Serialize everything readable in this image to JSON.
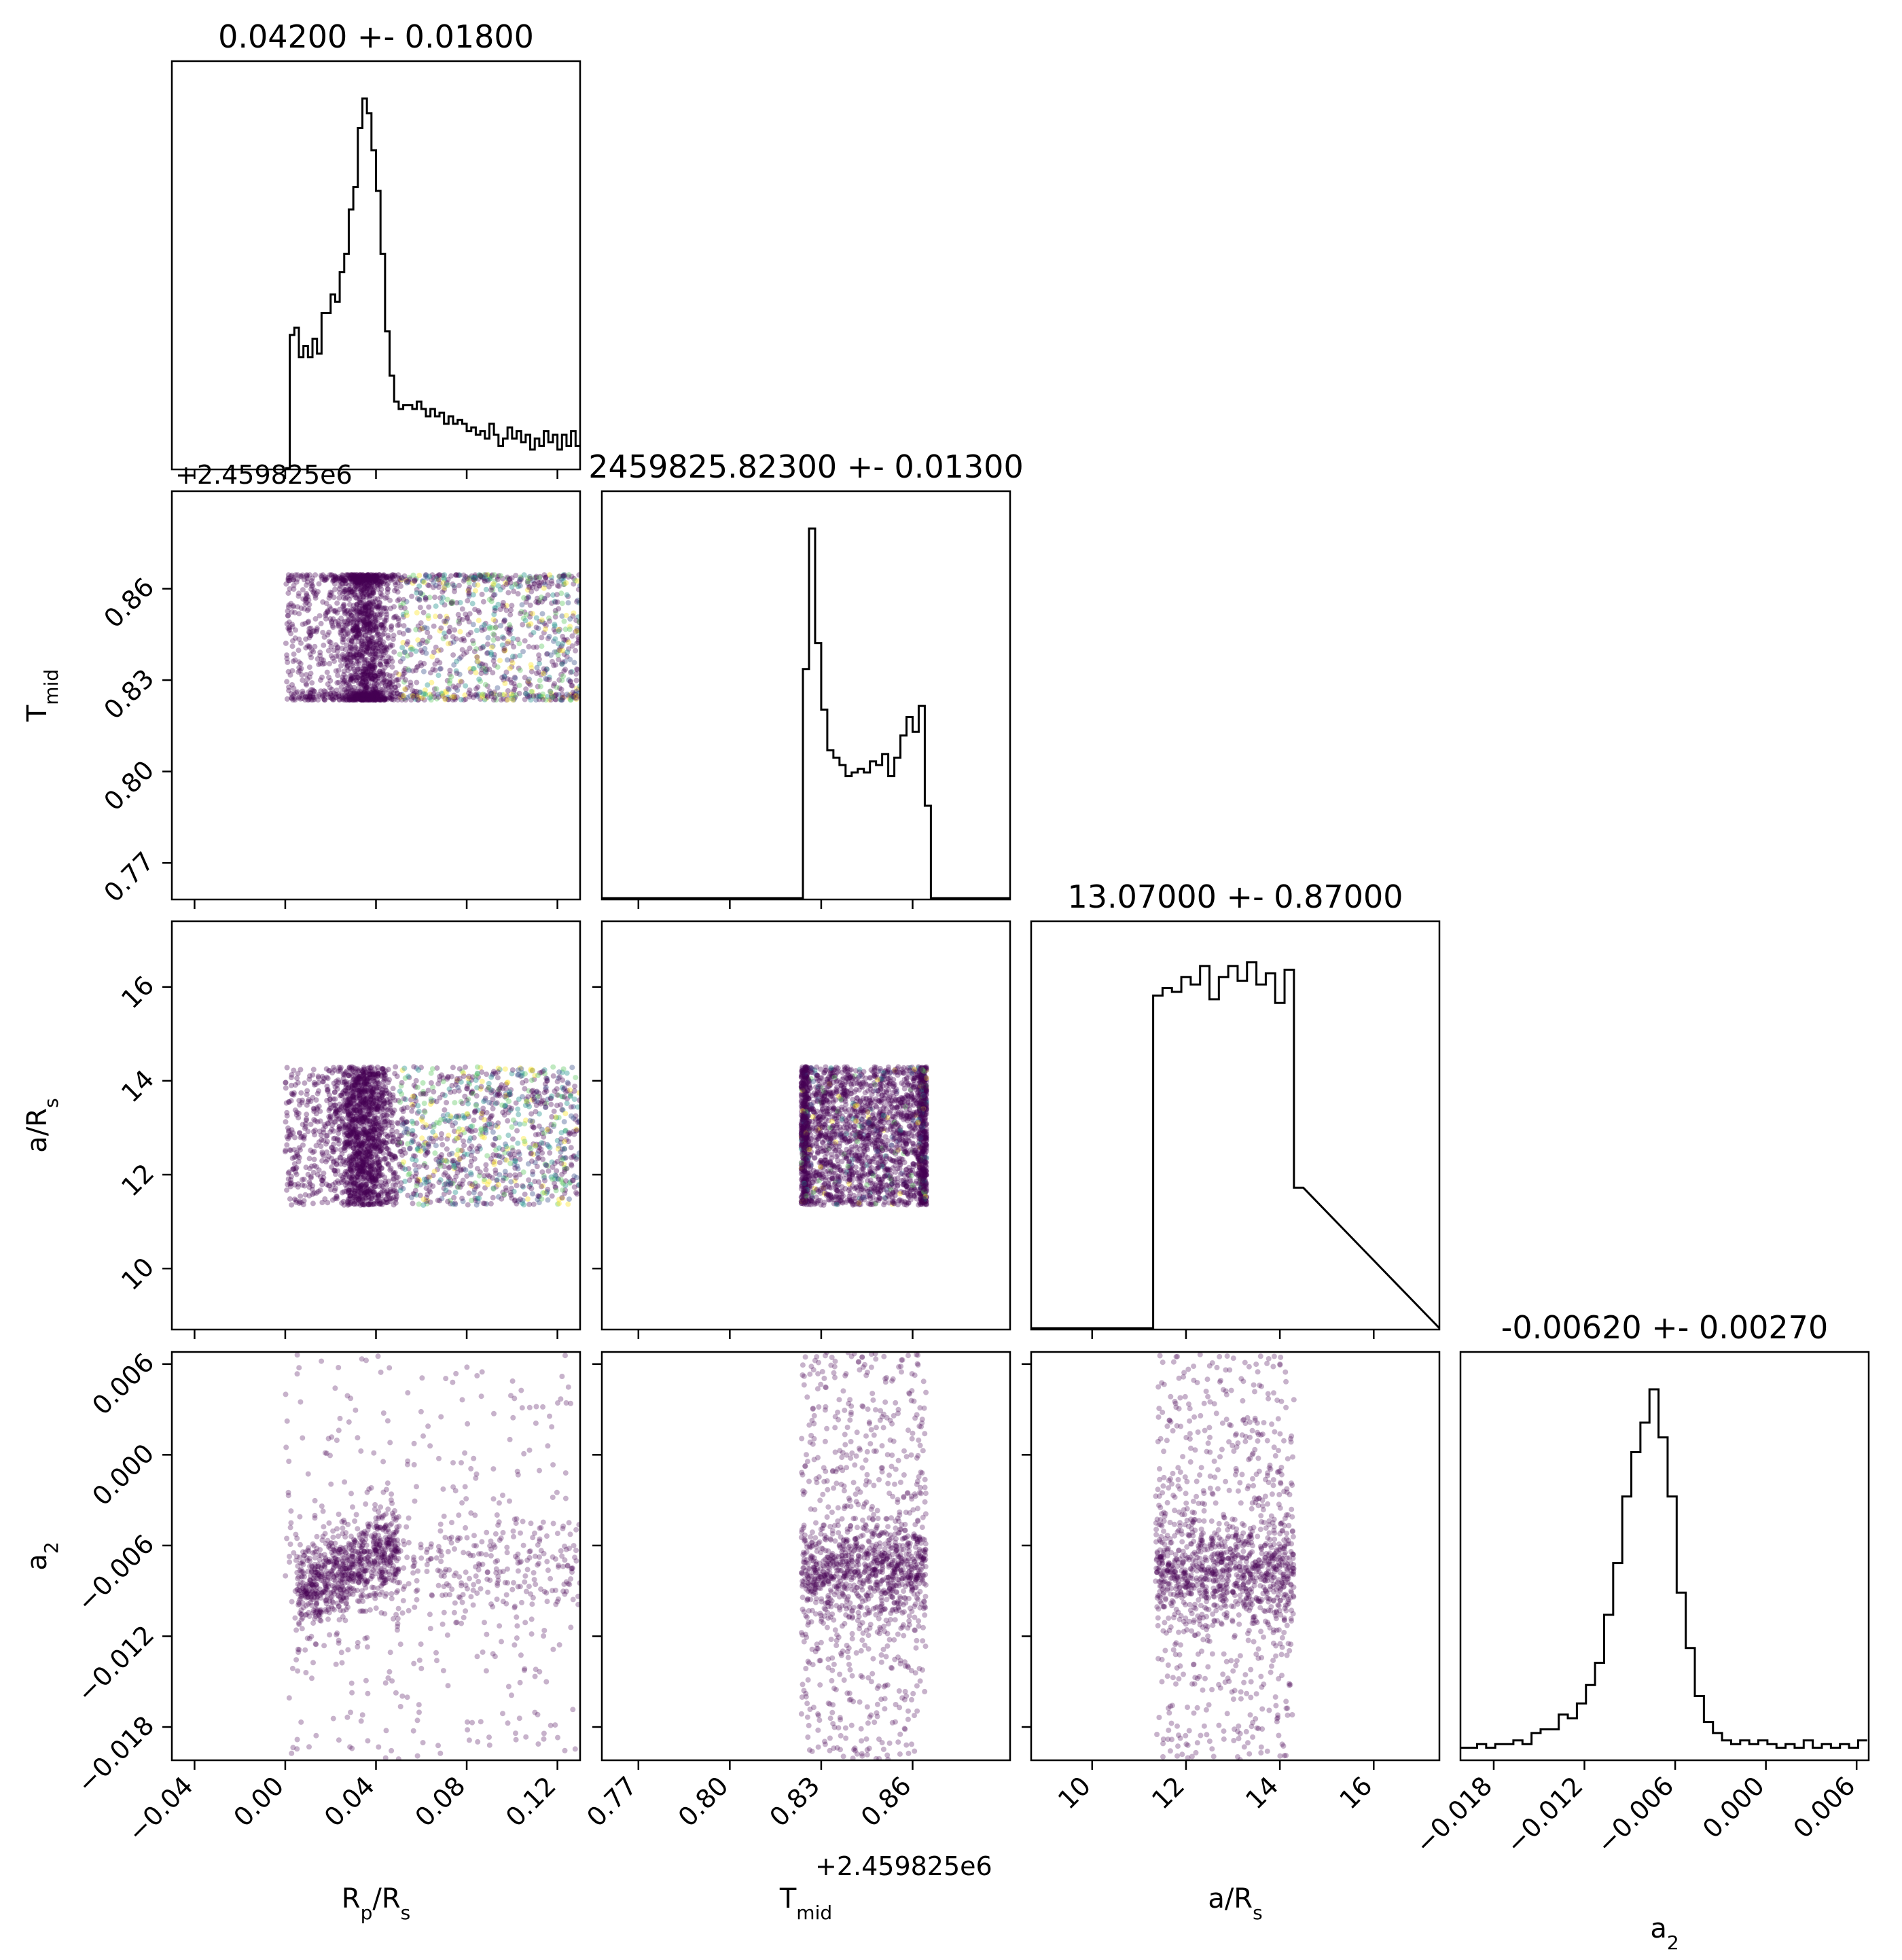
{
  "chart_data": {
    "type": "corner",
    "params": [
      {
        "key": "rp",
        "label": "R",
        "label_sub": "p",
        "label_tail": "/R",
        "label_tail_sub": "s",
        "title": "0.04200 +- 0.01800",
        "range": [
          -0.05,
          0.13
        ],
        "ticks": [
          -0.04,
          0.0,
          0.04,
          0.08,
          0.12
        ],
        "tick_labels": [
          "−0.04",
          "0.00",
          "0.04",
          "0.08",
          "0.12"
        ]
      },
      {
        "key": "tmid",
        "label": "T",
        "label_sub": "mid",
        "label_tail": "",
        "label_tail_sub": "",
        "title": "2459825.82300 +- 0.01300",
        "range": [
          0.758,
          0.892
        ],
        "ticks": [
          0.77,
          0.8,
          0.83,
          0.86
        ],
        "tick_labels": [
          "0.77",
          "0.80",
          "0.83",
          "0.86"
        ],
        "offset_label": "+2.459825e6"
      },
      {
        "key": "ars",
        "label": "a/R",
        "label_sub": "s",
        "label_tail": "",
        "label_tail_sub": "",
        "title": "13.07000 +- 0.87000",
        "range": [
          8.7,
          17.4
        ],
        "ticks": [
          10,
          12,
          14,
          16
        ],
        "tick_labels": [
          "10",
          "12",
          "14",
          "16"
        ]
      },
      {
        "key": "a2",
        "label": "a",
        "label_sub": "2",
        "label_tail": "",
        "label_tail_sub": "",
        "title": "-0.00620 +- 0.00270",
        "range": [
          -0.0202,
          0.0068
        ],
        "ticks": [
          -0.018,
          -0.012,
          -0.006,
          0.0,
          0.006
        ],
        "tick_labels": [
          "−0.018",
          "−0.012",
          "−0.006",
          "0.000",
          "0.006"
        ]
      }
    ],
    "histograms": {
      "rp": {
        "bins": [
          [
            0.0,
            0.0
          ],
          [
            0.002,
            0.36
          ],
          [
            0.004,
            0.38
          ],
          [
            0.006,
            0.3
          ],
          [
            0.008,
            0.33
          ],
          [
            0.01,
            0.3
          ],
          [
            0.012,
            0.35
          ],
          [
            0.014,
            0.31
          ],
          [
            0.016,
            0.42
          ],
          [
            0.018,
            0.42
          ],
          [
            0.02,
            0.47
          ],
          [
            0.022,
            0.45
          ],
          [
            0.024,
            0.53
          ],
          [
            0.026,
            0.58
          ],
          [
            0.028,
            0.7
          ],
          [
            0.03,
            0.76
          ],
          [
            0.032,
            0.92
          ],
          [
            0.034,
            1.0
          ],
          [
            0.036,
            0.96
          ],
          [
            0.038,
            0.86
          ],
          [
            0.04,
            0.75
          ],
          [
            0.042,
            0.58
          ],
          [
            0.044,
            0.37
          ],
          [
            0.046,
            0.25
          ],
          [
            0.048,
            0.18
          ],
          [
            0.05,
            0.16
          ],
          [
            0.052,
            0.17
          ],
          [
            0.054,
            0.17
          ],
          [
            0.056,
            0.16
          ],
          [
            0.058,
            0.18
          ],
          [
            0.06,
            0.16
          ],
          [
            0.062,
            0.14
          ],
          [
            0.064,
            0.16
          ],
          [
            0.066,
            0.14
          ],
          [
            0.068,
            0.15
          ],
          [
            0.07,
            0.12
          ],
          [
            0.072,
            0.14
          ],
          [
            0.074,
            0.12
          ],
          [
            0.076,
            0.13
          ],
          [
            0.078,
            0.12
          ],
          [
            0.08,
            0.1
          ],
          [
            0.082,
            0.11
          ],
          [
            0.084,
            0.09
          ],
          [
            0.086,
            0.1
          ],
          [
            0.088,
            0.08
          ],
          [
            0.09,
            0.12
          ],
          [
            0.092,
            0.09
          ],
          [
            0.094,
            0.06
          ],
          [
            0.096,
            0.08
          ],
          [
            0.098,
            0.11
          ],
          [
            0.1,
            0.08
          ],
          [
            0.102,
            0.1
          ],
          [
            0.104,
            0.07
          ],
          [
            0.106,
            0.09
          ],
          [
            0.108,
            0.05
          ],
          [
            0.11,
            0.08
          ],
          [
            0.112,
            0.06
          ],
          [
            0.114,
            0.1
          ],
          [
            0.116,
            0.07
          ],
          [
            0.118,
            0.09
          ],
          [
            0.12,
            0.05
          ],
          [
            0.122,
            0.09
          ],
          [
            0.124,
            0.06
          ],
          [
            0.126,
            0.1
          ],
          [
            0.128,
            0.06
          ]
        ],
        "width": 0.002
      },
      "tmid": {
        "bins": [
          [
            0.822,
            0.0
          ],
          [
            0.824,
            0.62
          ],
          [
            0.826,
            1.0
          ],
          [
            0.828,
            0.69
          ],
          [
            0.83,
            0.51
          ],
          [
            0.832,
            0.4
          ],
          [
            0.834,
            0.38
          ],
          [
            0.836,
            0.36
          ],
          [
            0.838,
            0.33
          ],
          [
            0.84,
            0.34
          ],
          [
            0.842,
            0.35
          ],
          [
            0.844,
            0.34
          ],
          [
            0.846,
            0.37
          ],
          [
            0.848,
            0.36
          ],
          [
            0.85,
            0.39
          ],
          [
            0.852,
            0.33
          ],
          [
            0.854,
            0.38
          ],
          [
            0.856,
            0.44
          ],
          [
            0.858,
            0.49
          ],
          [
            0.86,
            0.45
          ],
          [
            0.862,
            0.52
          ],
          [
            0.864,
            0.25
          ],
          [
            0.866,
            0.0
          ]
        ],
        "width": 0.002,
        "start_bin": 0.8207
      },
      "ars": {
        "bins": [
          [
            11.3,
            0.9
          ],
          [
            11.5,
            0.92
          ],
          [
            11.7,
            0.91
          ],
          [
            11.9,
            0.95
          ],
          [
            12.1,
            0.93
          ],
          [
            12.3,
            0.98
          ],
          [
            12.5,
            0.89
          ],
          [
            12.7,
            0.95
          ],
          [
            12.9,
            0.98
          ],
          [
            13.1,
            0.94
          ],
          [
            13.3,
            0.99
          ],
          [
            13.5,
            0.93
          ],
          [
            13.7,
            0.96
          ],
          [
            13.9,
            0.88
          ],
          [
            14.1,
            0.97
          ],
          [
            14.3,
            0.38
          ]
        ],
        "width": 0.2
      },
      "a2": {
        "bins": [
          [
            -0.0202,
            0.03
          ],
          [
            -0.0197,
            0.03
          ],
          [
            -0.0191,
            0.04
          ],
          [
            -0.0185,
            0.03
          ],
          [
            -0.0179,
            0.04
          ],
          [
            -0.0173,
            0.04
          ],
          [
            -0.0167,
            0.05
          ],
          [
            -0.0161,
            0.04
          ],
          [
            -0.0155,
            0.07
          ],
          [
            -0.0149,
            0.08
          ],
          [
            -0.0143,
            0.08
          ],
          [
            -0.0137,
            0.12
          ],
          [
            -0.0131,
            0.11
          ],
          [
            -0.0125,
            0.15
          ],
          [
            -0.0119,
            0.2
          ],
          [
            -0.0113,
            0.26
          ],
          [
            -0.0107,
            0.39
          ],
          [
            -0.0101,
            0.53
          ],
          [
            -0.0095,
            0.71
          ],
          [
            -0.0089,
            0.83
          ],
          [
            -0.0083,
            0.91
          ],
          [
            -0.0077,
            1.0
          ],
          [
            -0.0071,
            0.87
          ],
          [
            -0.0065,
            0.71
          ],
          [
            -0.0059,
            0.45
          ],
          [
            -0.0053,
            0.3
          ],
          [
            -0.0047,
            0.17
          ],
          [
            -0.0041,
            0.1
          ],
          [
            -0.0035,
            0.07
          ],
          [
            -0.0029,
            0.05
          ],
          [
            -0.0023,
            0.04
          ],
          [
            -0.0017,
            0.05
          ],
          [
            -0.0011,
            0.04
          ],
          [
            -0.0005,
            0.05
          ],
          [
            0.0001,
            0.04
          ],
          [
            0.0007,
            0.03
          ],
          [
            0.0013,
            0.04
          ],
          [
            0.0019,
            0.03
          ],
          [
            0.0025,
            0.05
          ],
          [
            0.0031,
            0.03
          ],
          [
            0.0037,
            0.04
          ],
          [
            0.0043,
            0.03
          ],
          [
            0.0049,
            0.04
          ],
          [
            0.0055,
            0.03
          ],
          [
            0.0061,
            0.05
          ]
        ],
        "width": 0.0006
      }
    },
    "scatter_bounds": {
      "rp": [
        0.0,
        0.13
      ],
      "tmid": [
        0.8235,
        0.8645
      ],
      "ars": [
        11.35,
        14.3
      ],
      "a2": [
        -0.0202,
        0.0068
      ]
    },
    "scatter_color": "#440154",
    "colormap_accents": [
      "#3b528b",
      "#21918c",
      "#5ec962",
      "#fde725"
    ],
    "hist_color": "#000000"
  }
}
